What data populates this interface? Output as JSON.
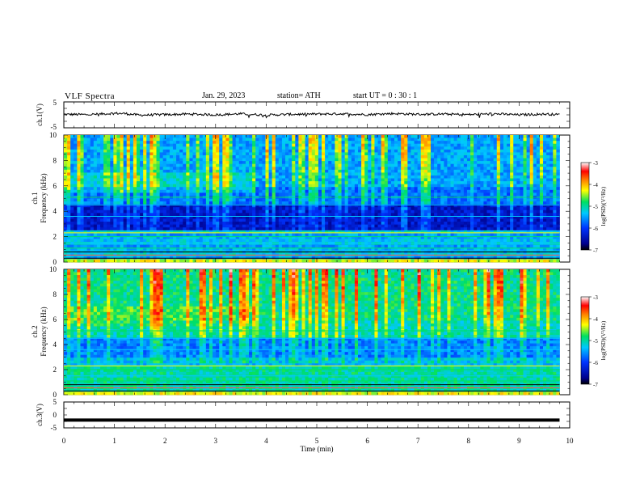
{
  "header": {
    "title": "VLF  Spectra",
    "date": "Jan. 29, 2023",
    "station": "station= ATH",
    "start_ut": "start  UT  =    0  : 30 : 1"
  },
  "chart_data": [
    {
      "type": "line",
      "panel": "ch1-waveform",
      "ylabel": "ch.1(V)",
      "ylim": [
        -5,
        5
      ],
      "yticks": [
        "5",
        "-5"
      ],
      "xlim": [
        0,
        10
      ],
      "series": [
        {
          "x": [
            0,
            0.5,
            1.0,
            1.2,
            1.5,
            2.0,
            2.5,
            3.0,
            3.5,
            4.0,
            4.5,
            5.0,
            5.5,
            6.0,
            6.5,
            7.0,
            7.5,
            8.0,
            8.5,
            9.0,
            9.5,
            9.8
          ],
          "values": [
            0.2,
            0.1,
            0.6,
            0.5,
            -0.1,
            0.1,
            0.3,
            0.0,
            0.4,
            -0.1,
            0.2,
            0.3,
            0.4,
            0.1,
            0.5,
            0.2,
            0.3,
            0.1,
            0.4,
            0.0,
            0.3,
            0.1
          ]
        }
      ]
    },
    {
      "type": "heatmap",
      "panel": "ch1-spectrogram",
      "ylabel": "ch.1\nFrequency  (kHz)",
      "ylim": [
        0,
        10
      ],
      "yticks": [
        "0",
        "2",
        "4",
        "6",
        "8",
        "10"
      ],
      "xlim": [
        0,
        10
      ],
      "colorbar": {
        "label": "log(PSD)(V²/Hz)",
        "range": [
          -7,
          -3
        ],
        "ticks": [
          "-3",
          "-4",
          "-5",
          "-6",
          "-7"
        ]
      }
    },
    {
      "type": "heatmap",
      "panel": "ch2-spectrogram",
      "ylabel": "ch.2\nFrequency  (kHz)",
      "ylim": [
        0,
        10
      ],
      "yticks": [
        "0",
        "2",
        "4",
        "6",
        "8",
        "10"
      ],
      "xlim": [
        0,
        10
      ],
      "colorbar": {
        "label": "log(PSD)(V²/Hz)",
        "range": [
          -7,
          -3
        ],
        "ticks": [
          "-3",
          "-4",
          "-5",
          "-6",
          "-7"
        ]
      }
    },
    {
      "type": "line",
      "panel": "ch3-waveform",
      "ylabel": "ch.3(V)",
      "ylim": [
        -5,
        5
      ],
      "yticks": [
        "5",
        "0",
        "-5"
      ],
      "xlim": [
        0,
        10
      ],
      "xlabel": "Time  (min)",
      "xticks": [
        "0",
        "1",
        "2",
        "3",
        "4",
        "5",
        "6",
        "7",
        "8",
        "9",
        "10"
      ],
      "series": [
        {
          "x": [
            0,
            9.8
          ],
          "values": [
            -2,
            -2
          ]
        }
      ]
    }
  ]
}
